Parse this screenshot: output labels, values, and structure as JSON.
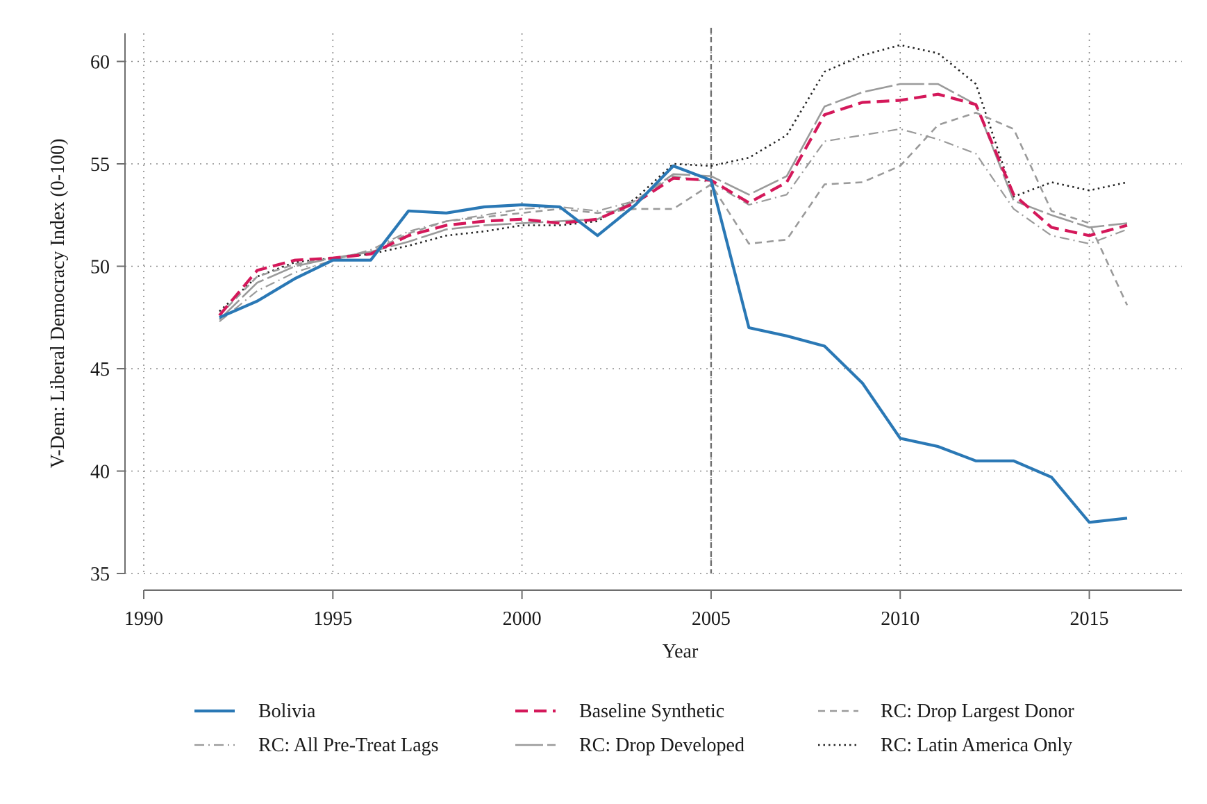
{
  "chart_data": {
    "type": "line",
    "title": "",
    "xlabel": "Year",
    "ylabel": "V-Dem: Liberal Democracy Index (0-100)",
    "xlim": [
      1990,
      2016
    ],
    "ylim": [
      35,
      61
    ],
    "x_ticks": [
      1990,
      1995,
      2000,
      2005,
      2010,
      2015
    ],
    "y_ticks": [
      35,
      40,
      45,
      50,
      55,
      60
    ],
    "grid": true,
    "treatment_line_x": 2005,
    "legend_position": "bottom",
    "x": [
      1992,
      1993,
      1994,
      1995,
      1996,
      1997,
      1998,
      1999,
      2000,
      2001,
      2002,
      2003,
      2004,
      2005,
      2006,
      2007,
      2008,
      2009,
      2010,
      2011,
      2012,
      2013,
      2014,
      2015,
      2016
    ],
    "series": [
      {
        "name": "Bolivia",
        "style": "solid-thick",
        "color": "#2a78b5",
        "values": [
          47.5,
          48.3,
          49.4,
          50.3,
          50.3,
          52.7,
          52.6,
          52.9,
          53.0,
          52.9,
          51.5,
          53.0,
          54.9,
          54.2,
          47.0,
          46.6,
          46.1,
          44.3,
          41.6,
          41.2,
          40.5,
          40.5,
          39.7,
          37.5,
          37.7
        ]
      },
      {
        "name": "Baseline Synthetic",
        "style": "dashed-thick",
        "color": "#d4185a",
        "values": [
          47.6,
          49.8,
          50.3,
          50.4,
          50.6,
          51.5,
          52.0,
          52.2,
          52.3,
          52.1,
          52.3,
          53.1,
          54.3,
          54.2,
          53.1,
          54.1,
          57.4,
          58.0,
          58.1,
          58.4,
          57.9,
          53.5,
          51.9,
          51.5,
          52.0
        ]
      },
      {
        "name": "RC: Drop Largest Donor",
        "style": "dashed",
        "color": "#9a9a9a",
        "values": [
          47.6,
          49.5,
          50.1,
          50.4,
          50.7,
          51.6,
          52.2,
          52.4,
          52.6,
          52.8,
          52.6,
          52.8,
          52.8,
          54.0,
          51.1,
          51.3,
          54.0,
          54.1,
          54.9,
          56.9,
          57.5,
          56.7,
          52.7,
          52.1,
          48.1
        ]
      },
      {
        "name": "RC: All Pre-Treat Lags",
        "style": "dashdot",
        "color": "#9a9a9a",
        "values": [
          47.3,
          48.8,
          49.7,
          50.3,
          50.8,
          51.7,
          52.2,
          52.5,
          52.8,
          52.9,
          52.7,
          53.2,
          54.4,
          54.1,
          53.0,
          53.5,
          56.1,
          56.4,
          56.7,
          56.2,
          55.5,
          52.8,
          51.5,
          51.1,
          51.8
        ]
      },
      {
        "name": "RC: Drop Developed",
        "style": "long-dashed",
        "color": "#9a9a9a",
        "values": [
          47.4,
          49.2,
          50.0,
          50.4,
          50.7,
          51.2,
          51.8,
          52.0,
          52.1,
          52.2,
          52.3,
          53.2,
          54.5,
          54.4,
          53.5,
          54.4,
          57.8,
          58.5,
          58.9,
          58.9,
          57.9,
          53.2,
          52.5,
          51.9,
          52.1
        ]
      },
      {
        "name": "RC: Latin America Only",
        "style": "dotted",
        "color": "#222222",
        "values": [
          47.8,
          49.5,
          50.2,
          50.4,
          50.6,
          51.0,
          51.5,
          51.7,
          52.0,
          52.0,
          52.2,
          53.3,
          55.0,
          54.9,
          55.3,
          56.4,
          59.5,
          60.3,
          60.8,
          60.4,
          58.9,
          53.4,
          54.1,
          53.7,
          54.1
        ]
      }
    ]
  }
}
